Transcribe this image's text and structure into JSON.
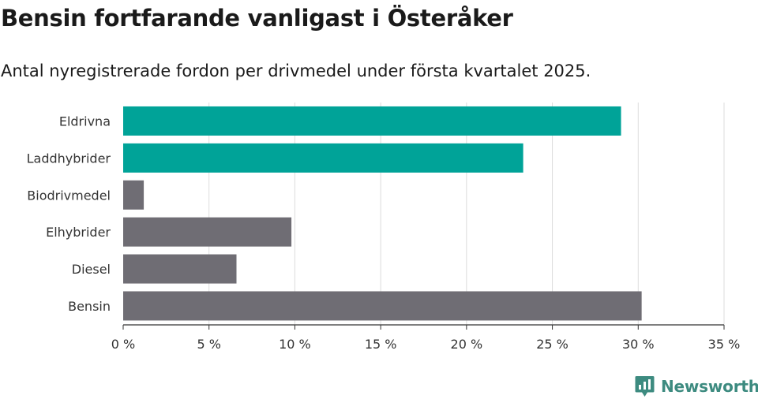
{
  "header": {
    "title": "Bensin fortfarande vanligast i Österåker",
    "subtitle": "Antal nyregistrerade fordon per drivmedel under första kvartalet 2025."
  },
  "branding": {
    "logo_text": "Newsworthy",
    "logo_icon": "bar-chart-speech-bubble-icon",
    "logo_color": "#3d8b80"
  },
  "colors": {
    "highlight": "#00a398",
    "default": "#6f6d74",
    "grid": "#dcdcdc",
    "axis": "#333333"
  },
  "chart_data": {
    "type": "bar",
    "orientation": "horizontal",
    "title": "Bensin fortfarande vanligast i Österåker",
    "subtitle": "Antal nyregistrerade fordon per drivmedel under första kvartalet 2025.",
    "categories": [
      "Eldrivna",
      "Laddhybrider",
      "Biodrivmedel",
      "Elhybrider",
      "Diesel",
      "Bensin"
    ],
    "values": [
      29.0,
      23.3,
      1.2,
      9.8,
      6.6,
      30.2
    ],
    "highlighted": [
      true,
      true,
      false,
      false,
      false,
      false
    ],
    "unit": "%",
    "xlim": [
      0,
      35
    ],
    "xticks": [
      0,
      5,
      10,
      15,
      20,
      25,
      30,
      35
    ],
    "xtick_labels": [
      "0 %",
      "5 %",
      "10 %",
      "15 %",
      "20 %",
      "25 %",
      "30 %",
      "35 %"
    ],
    "xlabel": "",
    "ylabel": "",
    "grid": "vertical",
    "legend": "none"
  }
}
